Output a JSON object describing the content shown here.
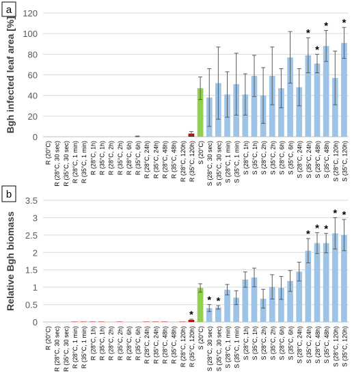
{
  "colors": {
    "R": "#c00000",
    "S": "#9dc3e6",
    "S_20": "#92d050",
    "error_bar": "#595959",
    "grid": "#d9d9d9",
    "axis": "#bfbfbf",
    "tick_text": "#595959",
    "ylabel": "#404040"
  },
  "chart_data": [
    {
      "type": "bar",
      "panel_label": "a",
      "ylabel": "Bgh infected leaf area [%]",
      "ylim": [
        0,
        120
      ],
      "yticks": [
        "0",
        "20",
        "40",
        "60",
        "80",
        "100",
        "120"
      ],
      "grid": true,
      "categories": [
        "R (20°C)",
        "R (28°C, 30 sec)",
        "R (35°C, 30 sec)",
        "R (28°C, 1 min)",
        "R (35°C, 1 min)",
        "R (28°C, 1h)",
        "R (35°C, 1h)",
        "R (28°C, 2h)",
        "R (35°C, 2h)",
        "R (28°C, 6h)",
        "R (35°C, 6h)",
        "R (28°C, 24h)",
        "R (35°C, 24h)",
        "R (28°C, 48h)",
        "R (35°C, 48h)",
        "R (28°C, 120h)",
        "R (35°C, 120h)",
        "S (20°C)",
        "S (28°C, 30 sec)",
        "S (35°C, 30 sec)",
        "S (28°C, 1 min)",
        "S (35°C, 1 min)",
        "S (28°C, 1h)",
        "S (35°C, 1h)",
        "S (28°C, 2h)",
        "S (35°C, 2h)",
        "S (28°C, 6h)",
        "S (35°C, 6h)",
        "S (28°C, 24h)",
        "S (35°C, 24h)",
        "S (28°C, 48h)",
        "S (35°C, 48h)",
        "S (28°C, 120h)",
        "S (35°C, 120h)"
      ],
      "values": [
        0,
        0,
        0,
        0,
        0,
        0,
        0,
        0,
        0,
        0,
        0.2,
        0,
        0,
        0,
        0,
        0,
        3,
        47,
        38,
        52,
        41,
        51,
        41,
        59,
        40,
        59,
        47,
        77,
        48,
        79,
        71,
        88,
        57,
        91
      ],
      "errors": [
        0,
        0,
        0,
        0,
        0,
        0,
        0,
        0,
        0,
        0,
        0.5,
        0,
        0,
        0,
        0,
        0,
        2,
        11,
        28,
        35,
        22,
        30,
        20,
        20,
        27,
        28,
        19,
        25,
        18,
        17,
        9,
        15,
        26,
        15
      ],
      "significant": [
        false,
        false,
        false,
        false,
        false,
        false,
        false,
        false,
        false,
        false,
        false,
        false,
        false,
        false,
        false,
        false,
        false,
        false,
        false,
        false,
        false,
        false,
        false,
        false,
        false,
        false,
        false,
        false,
        false,
        true,
        true,
        true,
        false,
        true
      ]
    },
    {
      "type": "bar",
      "panel_label": "b",
      "ylabel": "Relative Bgh biomass",
      "ylim": [
        0,
        3.5
      ],
      "yticks": [
        "0",
        "0.5",
        "1",
        "1.5",
        "2",
        "2.5",
        "3",
        "3.5"
      ],
      "grid": true,
      "categories": [
        "R (20°C)",
        "R (28°C, 30 sec)",
        "R (35°C, 30 sec)",
        "R (28°C, 1 min)",
        "R (35°C, 1 min)",
        "R (28°C, 1h)",
        "R (35°C, 1h)",
        "R (28°C, 2h)",
        "R (35°C, 2h)",
        "R (28°C, 6h)",
        "R (35°C, 6h)",
        "R (28°C, 24h)",
        "R (35°C, 24h)",
        "R (28°C, 48h)",
        "R (35°C, 48h)",
        "R (28°C, 120h)",
        "R (35°C, 120h)",
        "S (20°C)",
        "S (28°C, 30 sec)",
        "S (35°C, 30 sec)",
        "S (28°C, 1 min)",
        "S (35°C, 1 min)",
        "S (28°C, 1h)",
        "S (35°C, 1h)",
        "S (28°C, 2h)",
        "S (35°C, 2h)",
        "S (28°C, 6h)",
        "S (35°C, 6h)",
        "S (28°C, 24h)",
        "S (35°C, 24h)",
        "S (28°C, 48h)",
        "S (35°C, 48h)",
        "S (28°C, 120h)",
        "S (35°C, 120h)"
      ],
      "values": [
        0,
        0,
        0,
        0.01,
        0.01,
        0.01,
        0.01,
        0,
        0.01,
        0,
        0,
        0.01,
        0.01,
        0.01,
        0,
        0.01,
        0.06,
        0.98,
        0.4,
        0.42,
        0.93,
        0.7,
        1.22,
        1.28,
        0.67,
        1.01,
        0.98,
        1.18,
        1.45,
        2.05,
        2.27,
        2.27,
        2.55,
        2.5
      ],
      "errors": [
        0,
        0,
        0,
        0,
        0,
        0,
        0,
        0,
        0,
        0,
        0,
        0,
        0,
        0,
        0,
        0,
        0.02,
        0.12,
        0.1,
        0.05,
        0.15,
        0.2,
        0.22,
        0.27,
        0.27,
        0.35,
        0.33,
        0.3,
        0.27,
        0.35,
        0.3,
        0.28,
        0.45,
        0.45
      ],
      "significant": [
        false,
        false,
        false,
        false,
        false,
        false,
        false,
        false,
        false,
        false,
        false,
        false,
        false,
        false,
        false,
        false,
        true,
        false,
        true,
        true,
        false,
        false,
        false,
        false,
        false,
        false,
        false,
        false,
        false,
        true,
        true,
        true,
        true,
        true
      ]
    }
  ]
}
